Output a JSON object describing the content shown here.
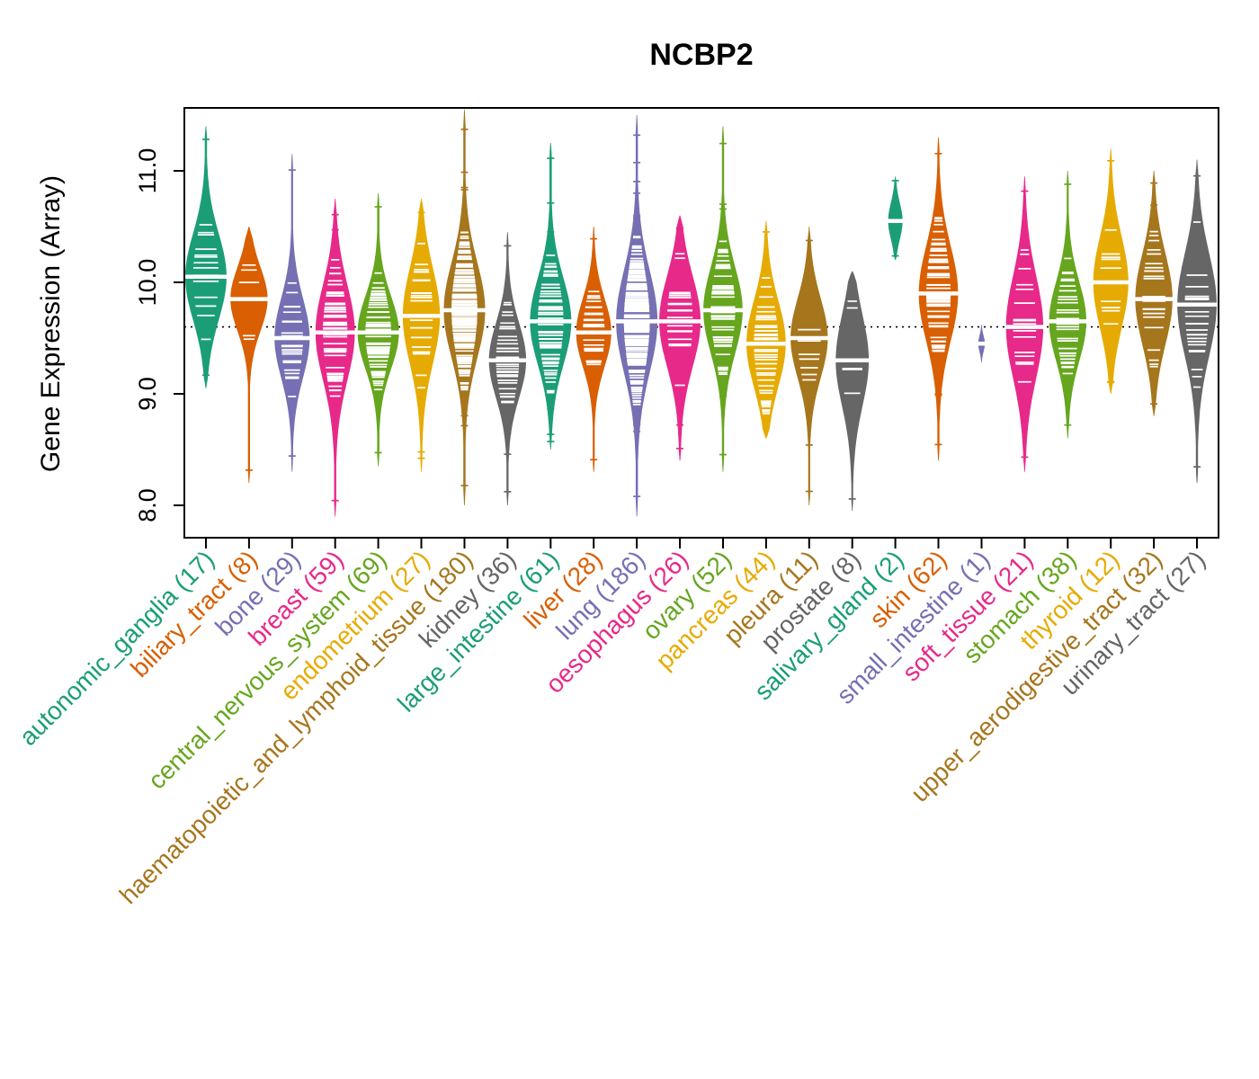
{
  "title": "NCBP2",
  "chart_data": {
    "type": "violin",
    "title": "NCBP2",
    "ylabel": "Gene Expression (Array)",
    "xlabel": "",
    "ylim": [
      7.7,
      11.6
    ],
    "ytick_values": [
      8.0,
      9.0,
      10.0,
      11.0
    ],
    "ytick_labels": [
      "8.0",
      "9.0",
      "10.0",
      "11.0"
    ],
    "overall_mean_line": 9.6,
    "grid": false,
    "legend": "none",
    "palette": [
      "#1B9E77",
      "#D95F02",
      "#7570B3",
      "#E7298A",
      "#66A61E",
      "#E6AB02",
      "#A6761D",
      "#666666"
    ],
    "categories": [
      {
        "label": "autonomic_ganglia",
        "count": 17,
        "color": "#1B9E77",
        "min": 9.05,
        "max": 11.4,
        "median": 10.05,
        "sd": 0.38,
        "width": 1.0
      },
      {
        "label": "biliary_tract",
        "count": 8,
        "color": "#D95F02",
        "min": 8.2,
        "max": 10.5,
        "median": 9.85,
        "sd": 0.28,
        "width": 0.9
      },
      {
        "label": "bone",
        "count": 29,
        "color": "#7570B3",
        "min": 8.3,
        "max": 11.15,
        "median": 9.5,
        "sd": 0.35,
        "width": 0.85
      },
      {
        "label": "breast",
        "count": 59,
        "color": "#E7298A",
        "min": 7.9,
        "max": 10.75,
        "median": 9.55,
        "sd": 0.42,
        "width": 0.95
      },
      {
        "label": "central_nervous_system",
        "count": 69,
        "color": "#66A61E",
        "min": 8.35,
        "max": 10.8,
        "median": 9.55,
        "sd": 0.32,
        "width": 1.0
      },
      {
        "label": "endometrium",
        "count": 27,
        "color": "#E6AB02",
        "min": 8.3,
        "max": 10.75,
        "median": 9.7,
        "sd": 0.42,
        "width": 0.9
      },
      {
        "label": "haematopoietic_and_lymphoid_tissue",
        "count": 180,
        "color": "#A6761D",
        "min": 8.0,
        "max": 11.55,
        "median": 9.75,
        "sd": 0.42,
        "width": 1.0
      },
      {
        "label": "kidney",
        "count": 36,
        "color": "#666666",
        "min": 8.0,
        "max": 10.45,
        "median": 9.3,
        "sd": 0.33,
        "width": 0.9
      },
      {
        "label": "large_intestine",
        "count": 61,
        "color": "#1B9E77",
        "min": 8.5,
        "max": 11.25,
        "median": 9.65,
        "sd": 0.38,
        "width": 1.0
      },
      {
        "label": "liver",
        "count": 28,
        "color": "#D95F02",
        "min": 8.3,
        "max": 10.5,
        "median": 9.55,
        "sd": 0.3,
        "width": 0.85
      },
      {
        "label": "lung",
        "count": 186,
        "color": "#7570B3",
        "min": 7.9,
        "max": 11.5,
        "median": 9.65,
        "sd": 0.45,
        "width": 1.0
      },
      {
        "label": "oesophagus",
        "count": 26,
        "color": "#E7298A",
        "min": 8.4,
        "max": 10.6,
        "median": 9.65,
        "sd": 0.4,
        "width": 1.0
      },
      {
        "label": "ovary",
        "count": 52,
        "color": "#66A61E",
        "min": 8.3,
        "max": 11.4,
        "median": 9.75,
        "sd": 0.38,
        "width": 0.95
      },
      {
        "label": "pancreas",
        "count": 44,
        "color": "#E6AB02",
        "min": 8.6,
        "max": 10.55,
        "median": 9.45,
        "sd": 0.38,
        "width": 0.95
      },
      {
        "label": "pleura",
        "count": 11,
        "color": "#A6761D",
        "min": 8.0,
        "max": 10.5,
        "median": 9.5,
        "sd": 0.35,
        "width": 0.9
      },
      {
        "label": "prostate",
        "count": 8,
        "color": "#666666",
        "min": 7.95,
        "max": 10.1,
        "median": 9.3,
        "sd": 0.4,
        "width": 0.8
      },
      {
        "label": "salivary_gland",
        "count": 2,
        "color": "#1B9E77",
        "min": 10.2,
        "max": 10.95,
        "median": 10.55,
        "sd": 0.16,
        "width": 0.35
      },
      {
        "label": "skin",
        "count": 62,
        "color": "#D95F02",
        "min": 8.4,
        "max": 11.3,
        "median": 9.9,
        "sd": 0.42,
        "width": 0.95
      },
      {
        "label": "small_intestine",
        "count": 1,
        "color": "#7570B3",
        "min": 9.28,
        "max": 9.62,
        "median": 9.45,
        "sd": 0.07,
        "width": 0.16
      },
      {
        "label": "soft_tissue",
        "count": 21,
        "color": "#E7298A",
        "min": 8.3,
        "max": 10.95,
        "median": 9.6,
        "sd": 0.45,
        "width": 0.9
      },
      {
        "label": "stomach",
        "count": 38,
        "color": "#66A61E",
        "min": 8.6,
        "max": 11.0,
        "median": 9.65,
        "sd": 0.35,
        "width": 0.9
      },
      {
        "label": "thyroid",
        "count": 12,
        "color": "#E6AB02",
        "min": 9.0,
        "max": 11.2,
        "median": 10.0,
        "sd": 0.4,
        "width": 0.85
      },
      {
        "label": "upper_aerodigestive_tract",
        "count": 32,
        "color": "#A6761D",
        "min": 8.8,
        "max": 11.0,
        "median": 9.85,
        "sd": 0.4,
        "width": 0.9
      },
      {
        "label": "urinary_tract",
        "count": 27,
        "color": "#666666",
        "min": 8.2,
        "max": 11.1,
        "median": 9.8,
        "sd": 0.45,
        "width": 0.95
      }
    ]
  }
}
